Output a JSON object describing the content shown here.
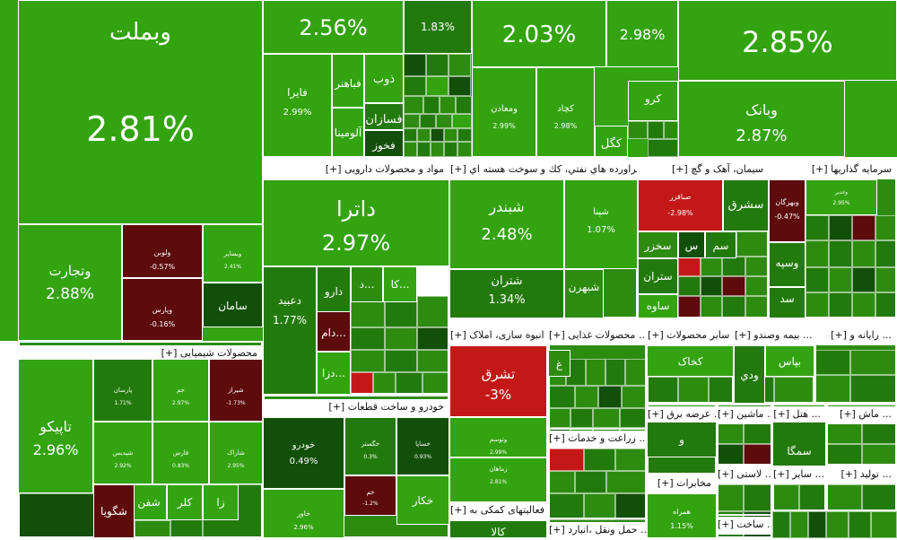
{
  "chart_data": {
    "type": "treemap",
    "colors": {
      "strong_up": "#33a30f",
      "up": "#2d8c10",
      "mid_up": "#237a0c",
      "flat": "#124f08",
      "down": "#5d0b0b",
      "strong_down": "#c41818"
    },
    "sectors": [
      {
        "label": "[+] محصولات شیمیایی"
      },
      {
        "label": "[+] مواد و محصولات دارویی"
      },
      {
        "label": "[+] فراورده هاي نفتي، كك و سوخت هسته اي"
      },
      {
        "label": "[+] سیمان، آهک و گچ"
      },
      {
        "label": "[+] سرمایه گذاریها"
      },
      {
        "label": "[+] خودرو و ساخت قطعات"
      },
      {
        "label": "[+] انبوه سازی، املاک ..."
      },
      {
        "label": "[+] محصولات غذایی ..."
      },
      {
        "label": "[+] سایر محصولات ..."
      },
      {
        "label": "[+] بیمه وصندو ..."
      },
      {
        "label": "[+] رایانه و ..."
      },
      {
        "label": "[+] زراعت و خدمات ..."
      },
      {
        "label": "[+] عرضه برق ..."
      },
      {
        "label": "[+] ماشین ..."
      },
      {
        "label": "[+] هتل ..."
      },
      {
        "label": "[+] ماش ..."
      },
      {
        "label": "[+] فعالیتهای کمکی به ..."
      },
      {
        "label": "[+] مخابرات"
      },
      {
        "label": "[+] لاستی ..."
      },
      {
        "label": "[+] سایر ..."
      },
      {
        "label": "[+] تولید ..."
      },
      {
        "label": "[+] حمل ونقل ،انبارد ..."
      },
      {
        "label": "[+] ساخت ..."
      }
    ],
    "stocks": [
      {
        "name": "",
        "change": "2.56%"
      },
      {
        "name": "",
        "change": "1.83%"
      },
      {
        "name": "",
        "change": "2.03%"
      },
      {
        "name": "",
        "change": "2.98%"
      },
      {
        "name": "",
        "change": "2.85%"
      },
      {
        "name": "وبملت",
        "change": "2.81%"
      },
      {
        "name": "فایرا",
        "change": "2.99%"
      },
      {
        "name": "فباهنر",
        "change": ""
      },
      {
        "name": "ذوب",
        "change": ""
      },
      {
        "name": "آلومینا",
        "change": ""
      },
      {
        "name": "فسازان",
        "change": ""
      },
      {
        "name": "فخوز",
        "change": ""
      },
      {
        "name": "ومعادن",
        "change": "2.99%"
      },
      {
        "name": "کچاد",
        "change": "2.98%"
      },
      {
        "name": "کگل",
        "change": ""
      },
      {
        "name": "کرو",
        "change": ""
      },
      {
        "name": "وبانک",
        "change": "2.87%"
      },
      {
        "name": "وتجارت",
        "change": "2.88%"
      },
      {
        "name": "ولوبن",
        "change": "-0.57%"
      },
      {
        "name": "وپارس",
        "change": "-0.16%"
      },
      {
        "name": "وبساپر",
        "change": "2.41%"
      },
      {
        "name": "سامان",
        "change": ""
      },
      {
        "name": "داترا",
        "change": "2.97%"
      },
      {
        "name": "دعبید",
        "change": "1.77%"
      },
      {
        "name": "دارو",
        "change": ""
      },
      {
        "name": "دام...",
        "change": ""
      },
      {
        "name": "دزا...",
        "change": ""
      },
      {
        "name": "کا...",
        "change": ""
      },
      {
        "name": "د...",
        "change": ""
      },
      {
        "name": "شبندر",
        "change": "2.48%"
      },
      {
        "name": "شپنا",
        "change": "1.07%"
      },
      {
        "name": "شتران",
        "change": "1.34%"
      },
      {
        "name": "شبهرن",
        "change": ""
      },
      {
        "name": "صباقزر",
        "change": "-2.98%"
      },
      {
        "name": "سشرق",
        "change": ""
      },
      {
        "name": "سخزر",
        "change": ""
      },
      {
        "name": "ستران",
        "change": ""
      },
      {
        "name": "ساوه",
        "change": ""
      },
      {
        "name": "س",
        "change": ""
      },
      {
        "name": "سم",
        "change": ""
      },
      {
        "name": "وبهرگان",
        "change": "-0.47%"
      },
      {
        "name": "وغدیر",
        "change": "2.95%"
      },
      {
        "name": "وسپه",
        "change": ""
      },
      {
        "name": "سد",
        "change": ""
      },
      {
        "name": "تاپیکو",
        "change": "2.96%"
      },
      {
        "name": "پارسان",
        "change": "1.71%"
      },
      {
        "name": "جم",
        "change": "2.97%"
      },
      {
        "name": "شیراز",
        "change": "-1.73%"
      },
      {
        "name": "شپدیس",
        "change": "2.92%"
      },
      {
        "name": "فارس",
        "change": "0.83%"
      },
      {
        "name": "شفن",
        "change": ""
      },
      {
        "name": "کلر",
        "change": ""
      },
      {
        "name": "زا",
        "change": ""
      },
      {
        "name": "شگویا",
        "change": ""
      },
      {
        "name": "شاراک",
        "change": "2.95%"
      },
      {
        "name": "خودرو",
        "change": "0.49%"
      },
      {
        "name": "خگستر",
        "change": "0.3%"
      },
      {
        "name": "خساپا",
        "change": "0.93%"
      },
      {
        "name": "خاور",
        "change": "2.96%"
      },
      {
        "name": "خم",
        "change": "-1.2%"
      },
      {
        "name": "خکار",
        "change": ""
      },
      {
        "name": "تشرق",
        "change": "-3%"
      },
      {
        "name": "کخاک",
        "change": ""
      },
      {
        "name": "ودي",
        "change": ""
      },
      {
        "name": "بپاس",
        "change": ""
      },
      {
        "name": "سمگا",
        "change": ""
      },
      {
        "name": "همراه",
        "change": "1.15%"
      },
      {
        "name": "کالا",
        "change": ""
      },
      {
        "name": "وتوسم",
        "change": "2.99%"
      },
      {
        "name": "زماهان",
        "change": "2.81%"
      },
      {
        "name": "غ",
        "change": ""
      },
      {
        "name": "و",
        "change": ""
      }
    ]
  }
}
